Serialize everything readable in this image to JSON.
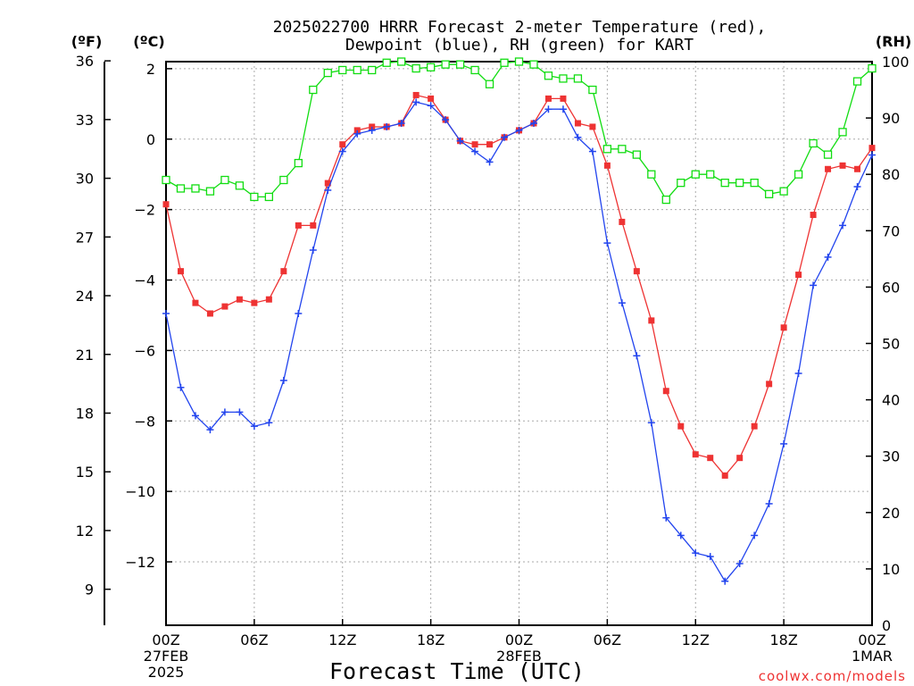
{
  "chart_data": {
    "type": "line",
    "title_line1": "2025022700 HRRR Forecast 2-meter Temperature (red),",
    "title_line2": "Dewpoint (blue), RH (green) for KART",
    "xlabel": "Forecast Time (UTC)",
    "watermark": "coolwx.com/models",
    "left_outer_axis": {
      "unit_label": "(ºF)",
      "ticks": [
        "36",
        "33",
        "30",
        "27",
        "24",
        "21",
        "18",
        "15",
        "12",
        "9"
      ]
    },
    "left_inner_axis": {
      "unit_label": "(ºC)",
      "ylim": [
        -13.8,
        2.2
      ],
      "ticks": [
        "2",
        "0",
        "−2",
        "−4",
        "−6",
        "−8",
        "−10",
        "−12"
      ]
    },
    "right_axis": {
      "unit_label": "(RH)",
      "ylim": [
        0,
        100
      ],
      "ticks": [
        "100",
        "90",
        "80",
        "70",
        "60",
        "50",
        "40",
        "30",
        "20",
        "10",
        "0"
      ]
    },
    "x_ticks": [
      {
        "hour": 0,
        "line1": "00Z",
        "line2": "27FEB",
        "line3": "2025"
      },
      {
        "hour": 6,
        "line1": "06Z",
        "line2": "",
        "line3": ""
      },
      {
        "hour": 12,
        "line1": "12Z",
        "line2": "",
        "line3": ""
      },
      {
        "hour": 18,
        "line1": "18Z",
        "line2": "",
        "line3": ""
      },
      {
        "hour": 24,
        "line1": "00Z",
        "line2": "28FEB",
        "line3": ""
      },
      {
        "hour": 30,
        "line1": "06Z",
        "line2": "",
        "line3": ""
      },
      {
        "hour": 36,
        "line1": "12Z",
        "line2": "",
        "line3": ""
      },
      {
        "hour": 42,
        "line1": "18Z",
        "line2": "",
        "line3": ""
      },
      {
        "hour": 48,
        "line1": "00Z",
        "line2": "1MAR",
        "line3": ""
      }
    ],
    "xlim": [
      0,
      48
    ],
    "grid": true,
    "colors": {
      "temperature": "#ee3333",
      "dewpoint": "#2244ee",
      "rh": "#11dd11"
    },
    "hours": [
      0,
      1,
      2,
      3,
      4,
      5,
      6,
      7,
      8,
      9,
      10,
      11,
      12,
      13,
      14,
      15,
      16,
      17,
      18,
      19,
      20,
      21,
      22,
      23,
      24,
      25,
      26,
      27,
      28,
      29,
      30,
      31,
      32,
      33,
      34,
      35,
      36,
      37,
      38,
      39,
      40,
      41,
      42,
      43,
      44,
      45,
      46,
      47,
      48
    ],
    "series": [
      {
        "key": "temperature",
        "units": "C",
        "values": [
          -1.85,
          -3.75,
          -4.65,
          -4.95,
          -4.75,
          -4.55,
          -4.65,
          -4.55,
          -3.75,
          -2.45,
          -2.45,
          -1.25,
          -0.15,
          0.25,
          0.35,
          0.35,
          0.45,
          1.25,
          1.15,
          0.55,
          -0.05,
          -0.15,
          -0.15,
          0.05,
          0.25,
          0.45,
          1.15,
          1.15,
          0.45,
          0.35,
          -0.75,
          -2.35,
          -3.75,
          -5.15,
          -7.15,
          -8.15,
          -8.95,
          -9.05,
          -9.55,
          -9.05,
          -8.15,
          -6.95,
          -5.35,
          -3.85,
          -2.15,
          -0.85,
          -0.75,
          -0.85,
          -0.25
        ]
      },
      {
        "key": "dewpoint",
        "units": "C",
        "values": [
          -4.95,
          -7.05,
          -7.85,
          -8.25,
          -7.75,
          -7.75,
          -8.15,
          -8.05,
          -6.85,
          -4.95,
          -3.15,
          -1.45,
          -0.35,
          0.15,
          0.25,
          0.35,
          0.45,
          1.05,
          0.95,
          0.55,
          -0.05,
          -0.35,
          -0.65,
          0.05,
          0.25,
          0.45,
          0.85,
          0.85,
          0.05,
          -0.35,
          -2.95,
          -4.65,
          -6.15,
          -8.05,
          -10.75,
          -11.25,
          -11.75,
          -11.85,
          -12.55,
          -12.05,
          -11.25,
          -10.35,
          -8.65,
          -6.65,
          -4.15,
          -3.35,
          -2.45,
          -1.35,
          -0.45
        ]
      },
      {
        "key": "rh",
        "units": "%",
        "values": [
          79,
          77.5,
          77.5,
          77,
          79,
          78,
          76,
          76,
          79,
          82,
          95,
          98,
          98.5,
          98.5,
          98.5,
          99.8,
          100,
          98.8,
          99,
          99.5,
          99.5,
          98.5,
          96,
          99.8,
          100,
          99.5,
          97.5,
          97,
          97,
          95,
          84.5,
          84.5,
          83.5,
          80,
          75.5,
          78.5,
          80,
          80,
          78.5,
          78.5,
          78.5,
          76.5,
          77,
          80,
          85.5,
          83.5,
          87.5,
          96.5,
          98.8
        ]
      }
    ]
  }
}
